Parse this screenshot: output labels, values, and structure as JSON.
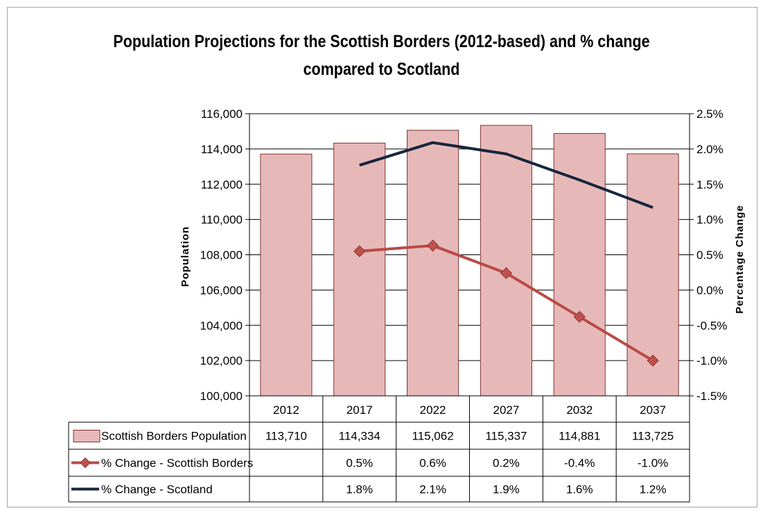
{
  "chart_data": {
    "type": "bar",
    "title_line1": "Population Projections for the Scottish Borders (2012-based) and % change",
    "title_line2": "compared to Scotland",
    "ylabel": "Population",
    "y2label": "Percentage Change",
    "categories": [
      "2012",
      "2017",
      "2022",
      "2027",
      "2032",
      "2037"
    ],
    "ylim": [
      100000,
      116000
    ],
    "y_ticks": [
      100000,
      102000,
      104000,
      106000,
      108000,
      110000,
      112000,
      114000,
      116000
    ],
    "y_tick_labels": [
      "100,000",
      "102,000",
      "104,000",
      "106,000",
      "108,000",
      "110,000",
      "112,000",
      "114,000",
      "116,000"
    ],
    "y2lim": [
      -1.5,
      2.5
    ],
    "y2_ticks": [
      -1.5,
      -1.0,
      -0.5,
      0.0,
      0.5,
      1.0,
      1.5,
      2.0,
      2.5
    ],
    "y2_tick_labels": [
      "-1.5%",
      "-1.0%",
      "-0.5%",
      "0.0%",
      "0.5%",
      "1.0%",
      "1.5%",
      "2.0%",
      "2.5%"
    ],
    "grid": true,
    "legend_placement": "data table below plot",
    "series": [
      {
        "name": "Scottish Borders Population",
        "kind": "bar",
        "axis": "left",
        "color": "#e6b9b8",
        "edge_color": "#7f3330",
        "values": [
          113710,
          114334,
          115062,
          115337,
          114881,
          113725
        ],
        "labels": [
          "113,710",
          "114,334",
          "115,062",
          "115,337",
          "114,881",
          "113,725"
        ]
      },
      {
        "name": "% Change - Scottish Borders",
        "kind": "line-diamond",
        "axis": "right",
        "color": "#b94a45",
        "values": [
          null,
          0.55,
          0.63,
          0.24,
          -0.38,
          -1.0
        ],
        "labels": [
          "",
          "0.5%",
          "0.6%",
          "0.2%",
          "-0.4%",
          "-1.0%"
        ]
      },
      {
        "name": "% Change - Scotland",
        "kind": "line",
        "axis": "right",
        "color": "#17253d",
        "values": [
          null,
          1.77,
          2.09,
          1.93,
          1.56,
          1.17
        ],
        "labels": [
          "",
          "1.8%",
          "2.1%",
          "1.9%",
          "1.6%",
          "1.2%"
        ]
      }
    ]
  }
}
